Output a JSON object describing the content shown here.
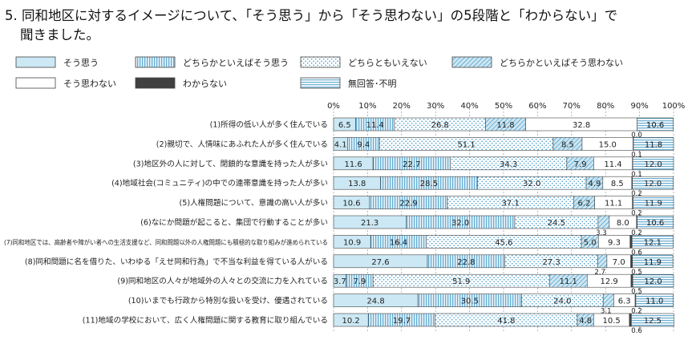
{
  "title_line1": "5. 同和地区に対するイメージについて、「そう思う」から「そう思わない」の5段階と「わからない」で",
  "title_line2": "聞きました。",
  "colors": {
    "s1": "#cce8f4",
    "s2": "#e6f3fa",
    "s3": "#ffffff",
    "s4": "#cde6f2",
    "s5": "#ffffff",
    "s6": "#404040",
    "s7": "#ffffff",
    "stroke": "#444444",
    "hatch": "#2f8fc0"
  },
  "chart_data": {
    "type": "bar",
    "orientation": "horizontal",
    "stacked": true,
    "xlim": [
      0,
      100
    ],
    "x_ticks": [
      "0%",
      "10%",
      "20%",
      "30%",
      "40%",
      "50%",
      "60%",
      "70%",
      "80%",
      "90%",
      "100%"
    ],
    "grid": true,
    "legend_position": "top",
    "categories": [
      "(1)所得の低い人が多く住んでいる",
      "(2)親切で、人情味にあふれた人が多く住んでいる",
      "(3)地区外の人に対して、閉鎖的な意識を持った人が多い",
      "(4)地域社会(コミュニティ)の中での連帯意識を持った人が多い",
      "(5)人権問題について、意識の高い人が多い",
      "(6)なにか問題が起こると、集団で行動することが多い",
      "(7)同和地区では、高齢者や障がい者への生活支援など、同和問題以外の人権問題にも積極的な取り組みが進められている",
      "(8)同和問題に名を借りた、いわゆる「えせ同和行為」で不当な利益を得ている人がいる",
      "(9)同和地区の人々が地域外の人々との交流に力を入れている",
      "(10)いまでも行政から特別な扱いを受け、優遇されている",
      "(11)地域の学校において、広く人権問題に関する教育に取り組んでいる"
    ],
    "series": [
      {
        "name": "そう思う",
        "values": [
          6.5,
          4.1,
          11.6,
          13.8,
          10.6,
          21.3,
          10.9,
          27.6,
          3.7,
          24.8,
          10.2
        ]
      },
      {
        "name": "どちらかといえばそう思う",
        "values": [
          11.4,
          9.4,
          22.7,
          28.5,
          22.9,
          32.0,
          16.4,
          22.8,
          7.9,
          30.5,
          19.7
        ]
      },
      {
        "name": "どちらともいえない",
        "values": [
          26.8,
          51.1,
          34.3,
          32.0,
          37.1,
          24.5,
          45.6,
          27.3,
          51.9,
          24.0,
          41.8
        ]
      },
      {
        "name": "どちらかといえばそう思わない",
        "values": [
          11.8,
          8.5,
          7.9,
          4.9,
          6.2,
          3.3,
          5.0,
          2.7,
          11.1,
          3.1,
          4.8
        ]
      },
      {
        "name": "そう思わない",
        "values": [
          32.8,
          15.0,
          11.4,
          8.5,
          11.1,
          8.0,
          9.3,
          7.0,
          12.9,
          6.3,
          10.5
        ]
      },
      {
        "name": "わからない",
        "values": [
          0.0,
          0.1,
          0.1,
          0.2,
          0.2,
          0.2,
          0.6,
          0.5,
          0.5,
          0.2,
          0.6
        ]
      },
      {
        "name": "無回答･不明",
        "values": [
          10.6,
          11.8,
          12.0,
          12.0,
          11.9,
          10.6,
          12.1,
          11.9,
          12.0,
          11.0,
          12.5
        ]
      }
    ],
    "label_text": [
      [
        "6.5",
        "11.4",
        "26.8",
        "11.8",
        "32.8",
        "0.0",
        "10.6"
      ],
      [
        "4.1",
        "9.4",
        "51.1",
        "8.5",
        "15.0",
        "0.1",
        "11.8"
      ],
      [
        "11.6",
        "22.7",
        "34.3",
        "7.9",
        "11.4",
        "0.1",
        "12.0"
      ],
      [
        "13.8",
        "28.5",
        "32.0",
        "4.9",
        "8.5",
        "0.2",
        "12.0"
      ],
      [
        "10.6",
        "22.9",
        "37.1",
        "6.2",
        "11.1",
        "0.2",
        "11.9"
      ],
      [
        "21.3",
        "32.0",
        "24.5",
        "3.3",
        "8.0",
        "0.2",
        "10.6"
      ],
      [
        "10.9",
        "16.4",
        "45.6",
        "5.0",
        "9.3",
        "0.6",
        "12.1"
      ],
      [
        "27.6",
        "22.8",
        "27.3",
        "2.7",
        "7.0",
        "0.5",
        "11.9"
      ],
      [
        "3.7",
        "7.9",
        "51.9",
        "11.1",
        "12.9",
        "0.5",
        "12.0"
      ],
      [
        "24.8",
        "30.5",
        "24.0",
        "3.1",
        "6.3",
        "0.2",
        "11.0"
      ],
      [
        "10.2",
        "19.7",
        "41.8",
        "4.8",
        "10.5",
        "0.6",
        "12.5"
      ]
    ]
  }
}
